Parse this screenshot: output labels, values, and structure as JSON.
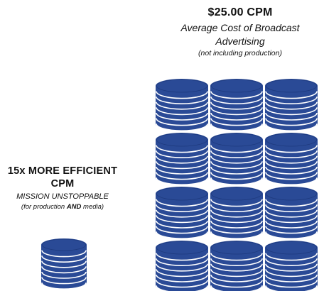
{
  "broadcast": {
    "cpm": "$25.00 CPM",
    "title": "Average Cost of Broadcast Advertising",
    "note": "(not including production)"
  },
  "mission": {
    "headline": "15x MORE EFFICIENT CPM",
    "name": "MISSION UNSTOPPABLE",
    "note_prefix": "(for production ",
    "note_emphasis": "AND",
    "note_suffix": " media)"
  },
  "colors": {
    "coin": "#2a4a96",
    "coin_dark": "#1e3a7e",
    "coin_line": "#ffffff"
  },
  "coin_stacks": {
    "broadcast_stacks": 12,
    "mission_stacks": 1
  }
}
